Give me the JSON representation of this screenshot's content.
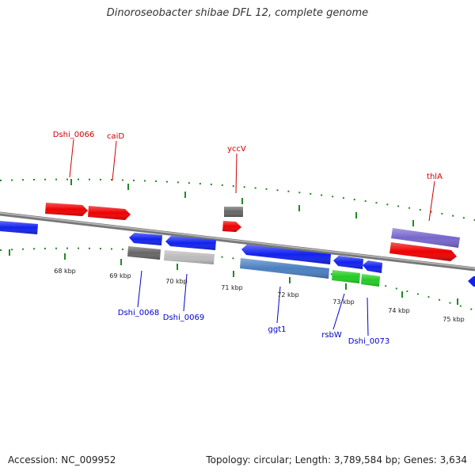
{
  "title": "Dinoroseobacter shibae DFL 12, complete genome",
  "footer": {
    "accession": "Accession: NC_009952",
    "stats": "Topology: circular; Length: 3,789,584 bp; Genes: 3,634"
  },
  "colors": {
    "red_label": "#cc0000",
    "blue_label": "#0000cc",
    "tick": "#228822",
    "backbone": "#888888",
    "gene_red": "#ee0000",
    "gene_blue": "#1122ee",
    "gene_dark_gray": "#666666",
    "gene_light_gray": "#bbbbbb",
    "gene_steel": "#4a7fbf",
    "gene_green": "#22cc22",
    "gene_purple": "#7766cc"
  },
  "scale": [
    "68 kbp",
    "69 kbp",
    "70 kbp",
    "71 kbp",
    "72 kbp",
    "73 kbp",
    "74 kbp",
    "75 kbp"
  ],
  "labels": {
    "forward": [
      "Dshi_0066",
      "caiD",
      "yccV",
      "thlA"
    ],
    "reverse": [
      "Dshi_0068",
      "Dshi_0069",
      "ggt1",
      "rsbW",
      "Dshi_0073"
    ]
  }
}
